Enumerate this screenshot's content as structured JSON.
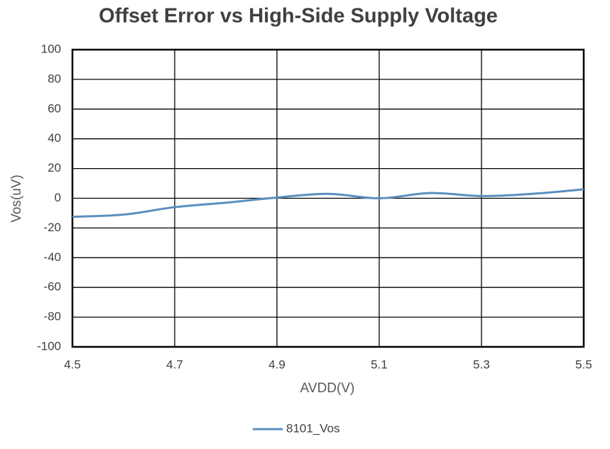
{
  "chart_data": {
    "type": "line",
    "title": "Offset Error vs High-Side Supply Voltage",
    "x_label": "AVDD(V)",
    "y_label": "Vos(uV)",
    "x": [
      4.5,
      4.6,
      4.7,
      4.8,
      4.9,
      5.0,
      5.1,
      5.2,
      5.3,
      5.4,
      5.5
    ],
    "series": [
      {
        "name": "8101_Vos",
        "color": "#5b8fbe",
        "values": [
          -12.5,
          -11,
          -6,
          -3,
          0.5,
          3,
          0,
          3.5,
          1.5,
          3,
          6
        ]
      }
    ],
    "xlim": [
      4.5,
      5.5
    ],
    "xticks": [
      4.5,
      4.7,
      4.9,
      5.1,
      5.3,
      5.5
    ],
    "ylim": [
      -100,
      100
    ],
    "yticks": [
      -100,
      -80,
      -60,
      -40,
      -20,
      0,
      20,
      40,
      60,
      80,
      100
    ],
    "grid": true,
    "smooth": true,
    "legend": "bottom"
  }
}
